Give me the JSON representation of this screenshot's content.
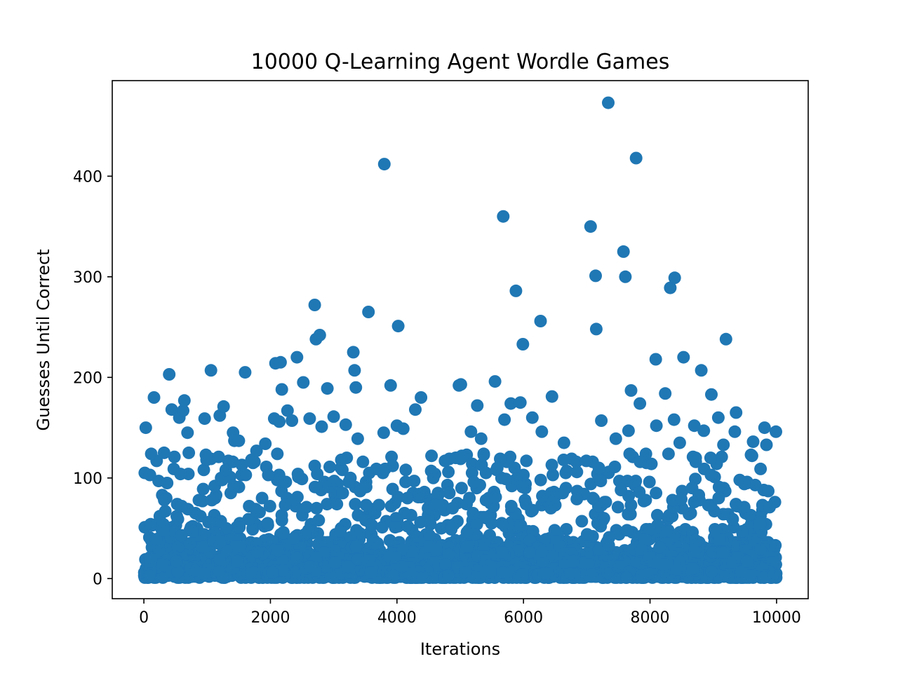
{
  "chart_data": {
    "type": "scatter",
    "title": "10000 Q-Learning Agent Wordle Games",
    "xlabel": "Iterations",
    "ylabel": "Guesses Until Correct",
    "xlim": [
      -500,
      10500
    ],
    "ylim": [
      -20,
      495
    ],
    "x_ticks": [
      0,
      2000,
      4000,
      6000,
      8000,
      10000
    ],
    "y_ticks": [
      0,
      100,
      200,
      300,
      400
    ],
    "grid": false,
    "legend": "none",
    "marker_color": "#1f77b4",
    "total_games": 10000,
    "outliers": [
      [
        30,
        150
      ],
      [
        160,
        180
      ],
      [
        320,
        125
      ],
      [
        400,
        203
      ],
      [
        440,
        168
      ],
      [
        560,
        160
      ],
      [
        620,
        167
      ],
      [
        640,
        177
      ],
      [
        690,
        145
      ],
      [
        710,
        125
      ],
      [
        960,
        159
      ],
      [
        990,
        118
      ],
      [
        1060,
        207
      ],
      [
        1200,
        162
      ],
      [
        1260,
        171
      ],
      [
        1410,
        145
      ],
      [
        1430,
        137
      ],
      [
        1500,
        137
      ],
      [
        1600,
        205
      ],
      [
        1700,
        118
      ],
      [
        1780,
        127
      ],
      [
        1920,
        134
      ],
      [
        2060,
        159
      ],
      [
        2080,
        214
      ],
      [
        2140,
        156
      ],
      [
        2160,
        215
      ],
      [
        2180,
        188
      ],
      [
        2270,
        167
      ],
      [
        2340,
        157
      ],
      [
        2420,
        220
      ],
      [
        2520,
        195
      ],
      [
        2620,
        159
      ],
      [
        2700,
        272
      ],
      [
        2720,
        238
      ],
      [
        2780,
        242
      ],
      [
        2810,
        151
      ],
      [
        2900,
        189
      ],
      [
        3000,
        161
      ],
      [
        3190,
        153
      ],
      [
        3310,
        225
      ],
      [
        3330,
        207
      ],
      [
        3350,
        190
      ],
      [
        3380,
        139
      ],
      [
        3550,
        265
      ],
      [
        3790,
        145
      ],
      [
        3800,
        412
      ],
      [
        3900,
        192
      ],
      [
        4000,
        152
      ],
      [
        4020,
        251
      ],
      [
        4100,
        149
      ],
      [
        4290,
        168
      ],
      [
        4380,
        180
      ],
      [
        4980,
        192
      ],
      [
        5010,
        193
      ],
      [
        5170,
        146
      ],
      [
        5270,
        172
      ],
      [
        5330,
        139
      ],
      [
        5550,
        196
      ],
      [
        5680,
        360
      ],
      [
        5700,
        158
      ],
      [
        5800,
        174
      ],
      [
        5880,
        286
      ],
      [
        5950,
        175
      ],
      [
        5990,
        233
      ],
      [
        6140,
        160
      ],
      [
        6270,
        256
      ],
      [
        6290,
        146
      ],
      [
        6450,
        181
      ],
      [
        6640,
        135
      ],
      [
        7060,
        350
      ],
      [
        7140,
        301
      ],
      [
        7150,
        248
      ],
      [
        7230,
        157
      ],
      [
        7340,
        473
      ],
      [
        7460,
        139
      ],
      [
        7580,
        325
      ],
      [
        7610,
        300
      ],
      [
        7660,
        147
      ],
      [
        7700,
        187
      ],
      [
        7780,
        418
      ],
      [
        7840,
        174
      ],
      [
        8090,
        218
      ],
      [
        8100,
        152
      ],
      [
        8240,
        184
      ],
      [
        8320,
        289
      ],
      [
        8380,
        158
      ],
      [
        8390,
        299
      ],
      [
        8470,
        135
      ],
      [
        8530,
        220
      ],
      [
        8700,
        152
      ],
      [
        8810,
        207
      ],
      [
        8850,
        147
      ],
      [
        8970,
        183
      ],
      [
        9080,
        160
      ],
      [
        9160,
        133
      ],
      [
        9200,
        238
      ],
      [
        9340,
        146
      ],
      [
        9360,
        165
      ],
      [
        9630,
        136
      ],
      [
        9810,
        150
      ],
      [
        9840,
        133
      ],
      [
        9990,
        146
      ]
    ]
  }
}
